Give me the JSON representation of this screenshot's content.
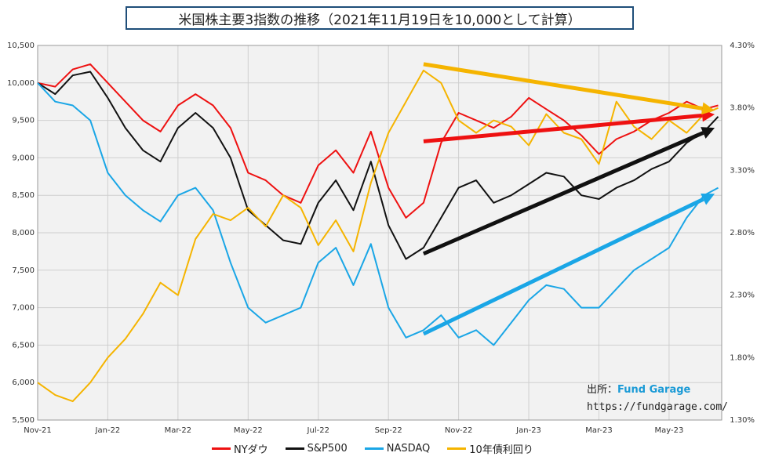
{
  "chart_data": {
    "type": "line",
    "title": "米国株主要3指数の推移（2021年11月19日を10,000として計算）",
    "y_left_ticks": [
      "10,500",
      "10,000",
      "9,500",
      "9,000",
      "8,500",
      "8,000",
      "7,500",
      "7,000",
      "6,500",
      "6,000",
      "5,500"
    ],
    "y_right_ticks": [
      "4.30%",
      "3.80%",
      "3.30%",
      "2.80%",
      "2.30%",
      "1.80%",
      "1.30%"
    ],
    "x_ticks": [
      "Nov-21",
      "Jan-22",
      "Mar-22",
      "May-22",
      "Jul-22",
      "Sep-22",
      "Nov-22",
      "Jan-23",
      "Mar-23",
      "May-23"
    ],
    "ylim_left": [
      5500,
      10500
    ],
    "ylim_right": [
      1.3,
      4.3
    ],
    "grid": true,
    "x_months": [
      0,
      2,
      4,
      6,
      8,
      10,
      12,
      14,
      16,
      18
    ],
    "series": [
      {
        "name": "NYダウ",
        "color": "#ee1111",
        "axis": "left",
        "x": [
          0,
          0.5,
          1,
          1.5,
          2,
          2.5,
          3,
          3.5,
          4,
          4.5,
          5,
          5.5,
          6,
          6.5,
          7,
          7.5,
          8,
          8.5,
          9,
          9.5,
          10,
          10.5,
          11,
          11.5,
          12,
          12.5,
          13,
          13.5,
          14,
          14.5,
          15,
          15.5,
          16,
          16.5,
          17,
          17.5,
          18,
          18.5,
          19,
          19.4
        ],
        "values": [
          10000,
          9950,
          10180,
          10250,
          10000,
          9750,
          9500,
          9350,
          9700,
          9850,
          9700,
          9400,
          8800,
          8700,
          8500,
          8400,
          8900,
          9100,
          8800,
          9350,
          8600,
          8200,
          8400,
          9200,
          9600,
          9500,
          9400,
          9550,
          9800,
          9650,
          9500,
          9300,
          9050,
          9250,
          9350,
          9500,
          9600,
          9750,
          9650,
          9700
        ]
      },
      {
        "name": "S&P500",
        "color": "#111111",
        "axis": "left",
        "x": [
          0,
          0.5,
          1,
          1.5,
          2,
          2.5,
          3,
          3.5,
          4,
          4.5,
          5,
          5.5,
          6,
          6.5,
          7,
          7.5,
          8,
          8.5,
          9,
          9.5,
          10,
          10.5,
          11,
          11.5,
          12,
          12.5,
          13,
          13.5,
          14,
          14.5,
          15,
          15.5,
          16,
          16.5,
          17,
          17.5,
          18,
          18.5,
          19,
          19.4
        ],
        "values": [
          10000,
          9850,
          10100,
          10150,
          9800,
          9400,
          9100,
          8950,
          9400,
          9600,
          9400,
          9000,
          8300,
          8100,
          7900,
          7850,
          8400,
          8700,
          8300,
          8950,
          8100,
          7650,
          7800,
          8200,
          8600,
          8700,
          8400,
          8500,
          8650,
          8800,
          8750,
          8500,
          8450,
          8600,
          8700,
          8850,
          8950,
          9200,
          9350,
          9550
        ]
      },
      {
        "name": "NASDAQ",
        "color": "#1aa6e6",
        "axis": "left",
        "x": [
          0,
          0.5,
          1,
          1.5,
          2,
          2.5,
          3,
          3.5,
          4,
          4.5,
          5,
          5.5,
          6,
          6.5,
          7,
          7.5,
          8,
          8.5,
          9,
          9.5,
          10,
          10.5,
          11,
          11.5,
          12,
          12.5,
          13,
          13.5,
          14,
          14.5,
          15,
          15.5,
          16,
          16.5,
          17,
          17.5,
          18,
          18.5,
          19,
          19.4
        ],
        "values": [
          10000,
          9750,
          9700,
          9500,
          8800,
          8500,
          8300,
          8150,
          8500,
          8600,
          8300,
          7600,
          7000,
          6800,
          6900,
          7000,
          7600,
          7800,
          7300,
          7850,
          7000,
          6600,
          6700,
          6900,
          6600,
          6700,
          6500,
          6800,
          7100,
          7300,
          7250,
          7000,
          7000,
          7250,
          7500,
          7650,
          7800,
          8200,
          8500,
          8600
        ]
      },
      {
        "name": "10年債利回り",
        "color": "#f5b400",
        "axis": "right",
        "x": [
          0,
          0.5,
          1,
          1.5,
          2,
          2.5,
          3,
          3.5,
          4,
          4.5,
          5,
          5.5,
          6,
          6.5,
          7,
          7.5,
          8,
          8.5,
          9,
          9.5,
          10,
          10.5,
          11,
          11.5,
          12,
          12.5,
          13,
          13.5,
          14,
          14.5,
          15,
          15.5,
          16,
          16.5,
          17,
          17.5,
          18,
          18.5,
          19,
          19.4
        ],
        "values": [
          1.6,
          1.5,
          1.45,
          1.6,
          1.8,
          1.95,
          2.15,
          2.4,
          2.3,
          2.75,
          2.95,
          2.9,
          3.0,
          2.85,
          3.1,
          3.0,
          2.7,
          2.9,
          2.65,
          3.2,
          3.6,
          3.85,
          4.1,
          4.0,
          3.7,
          3.6,
          3.7,
          3.65,
          3.5,
          3.75,
          3.6,
          3.55,
          3.35,
          3.85,
          3.65,
          3.55,
          3.7,
          3.6,
          3.75,
          3.8
        ]
      }
    ],
    "trend_arrows": [
      {
        "color": "#ee1111",
        "axis": "left",
        "from": [
          11,
          9220
        ],
        "to": [
          19.3,
          9580
        ]
      },
      {
        "color": "#111111",
        "axis": "left",
        "from": [
          11,
          7720
        ],
        "to": [
          19.3,
          9400
        ]
      },
      {
        "color": "#1aa6e6",
        "axis": "left",
        "from": [
          11,
          6650
        ],
        "to": [
          19.3,
          8520
        ]
      },
      {
        "color": "#f5b400",
        "axis": "right",
        "from": [
          11,
          4.15
        ],
        "to": [
          19.3,
          3.78
        ]
      }
    ]
  },
  "legend": [
    {
      "label": "NYダウ",
      "color": "#ee1111"
    },
    {
      "label": "S&P500",
      "color": "#111111"
    },
    {
      "label": "NASDAQ",
      "color": "#1aa6e6"
    },
    {
      "label": "10年債利回り",
      "color": "#f5b400"
    }
  ],
  "source": {
    "prefix": "出所：",
    "name": "Fund Garage",
    "url": "https://fundgarage.com/"
  }
}
